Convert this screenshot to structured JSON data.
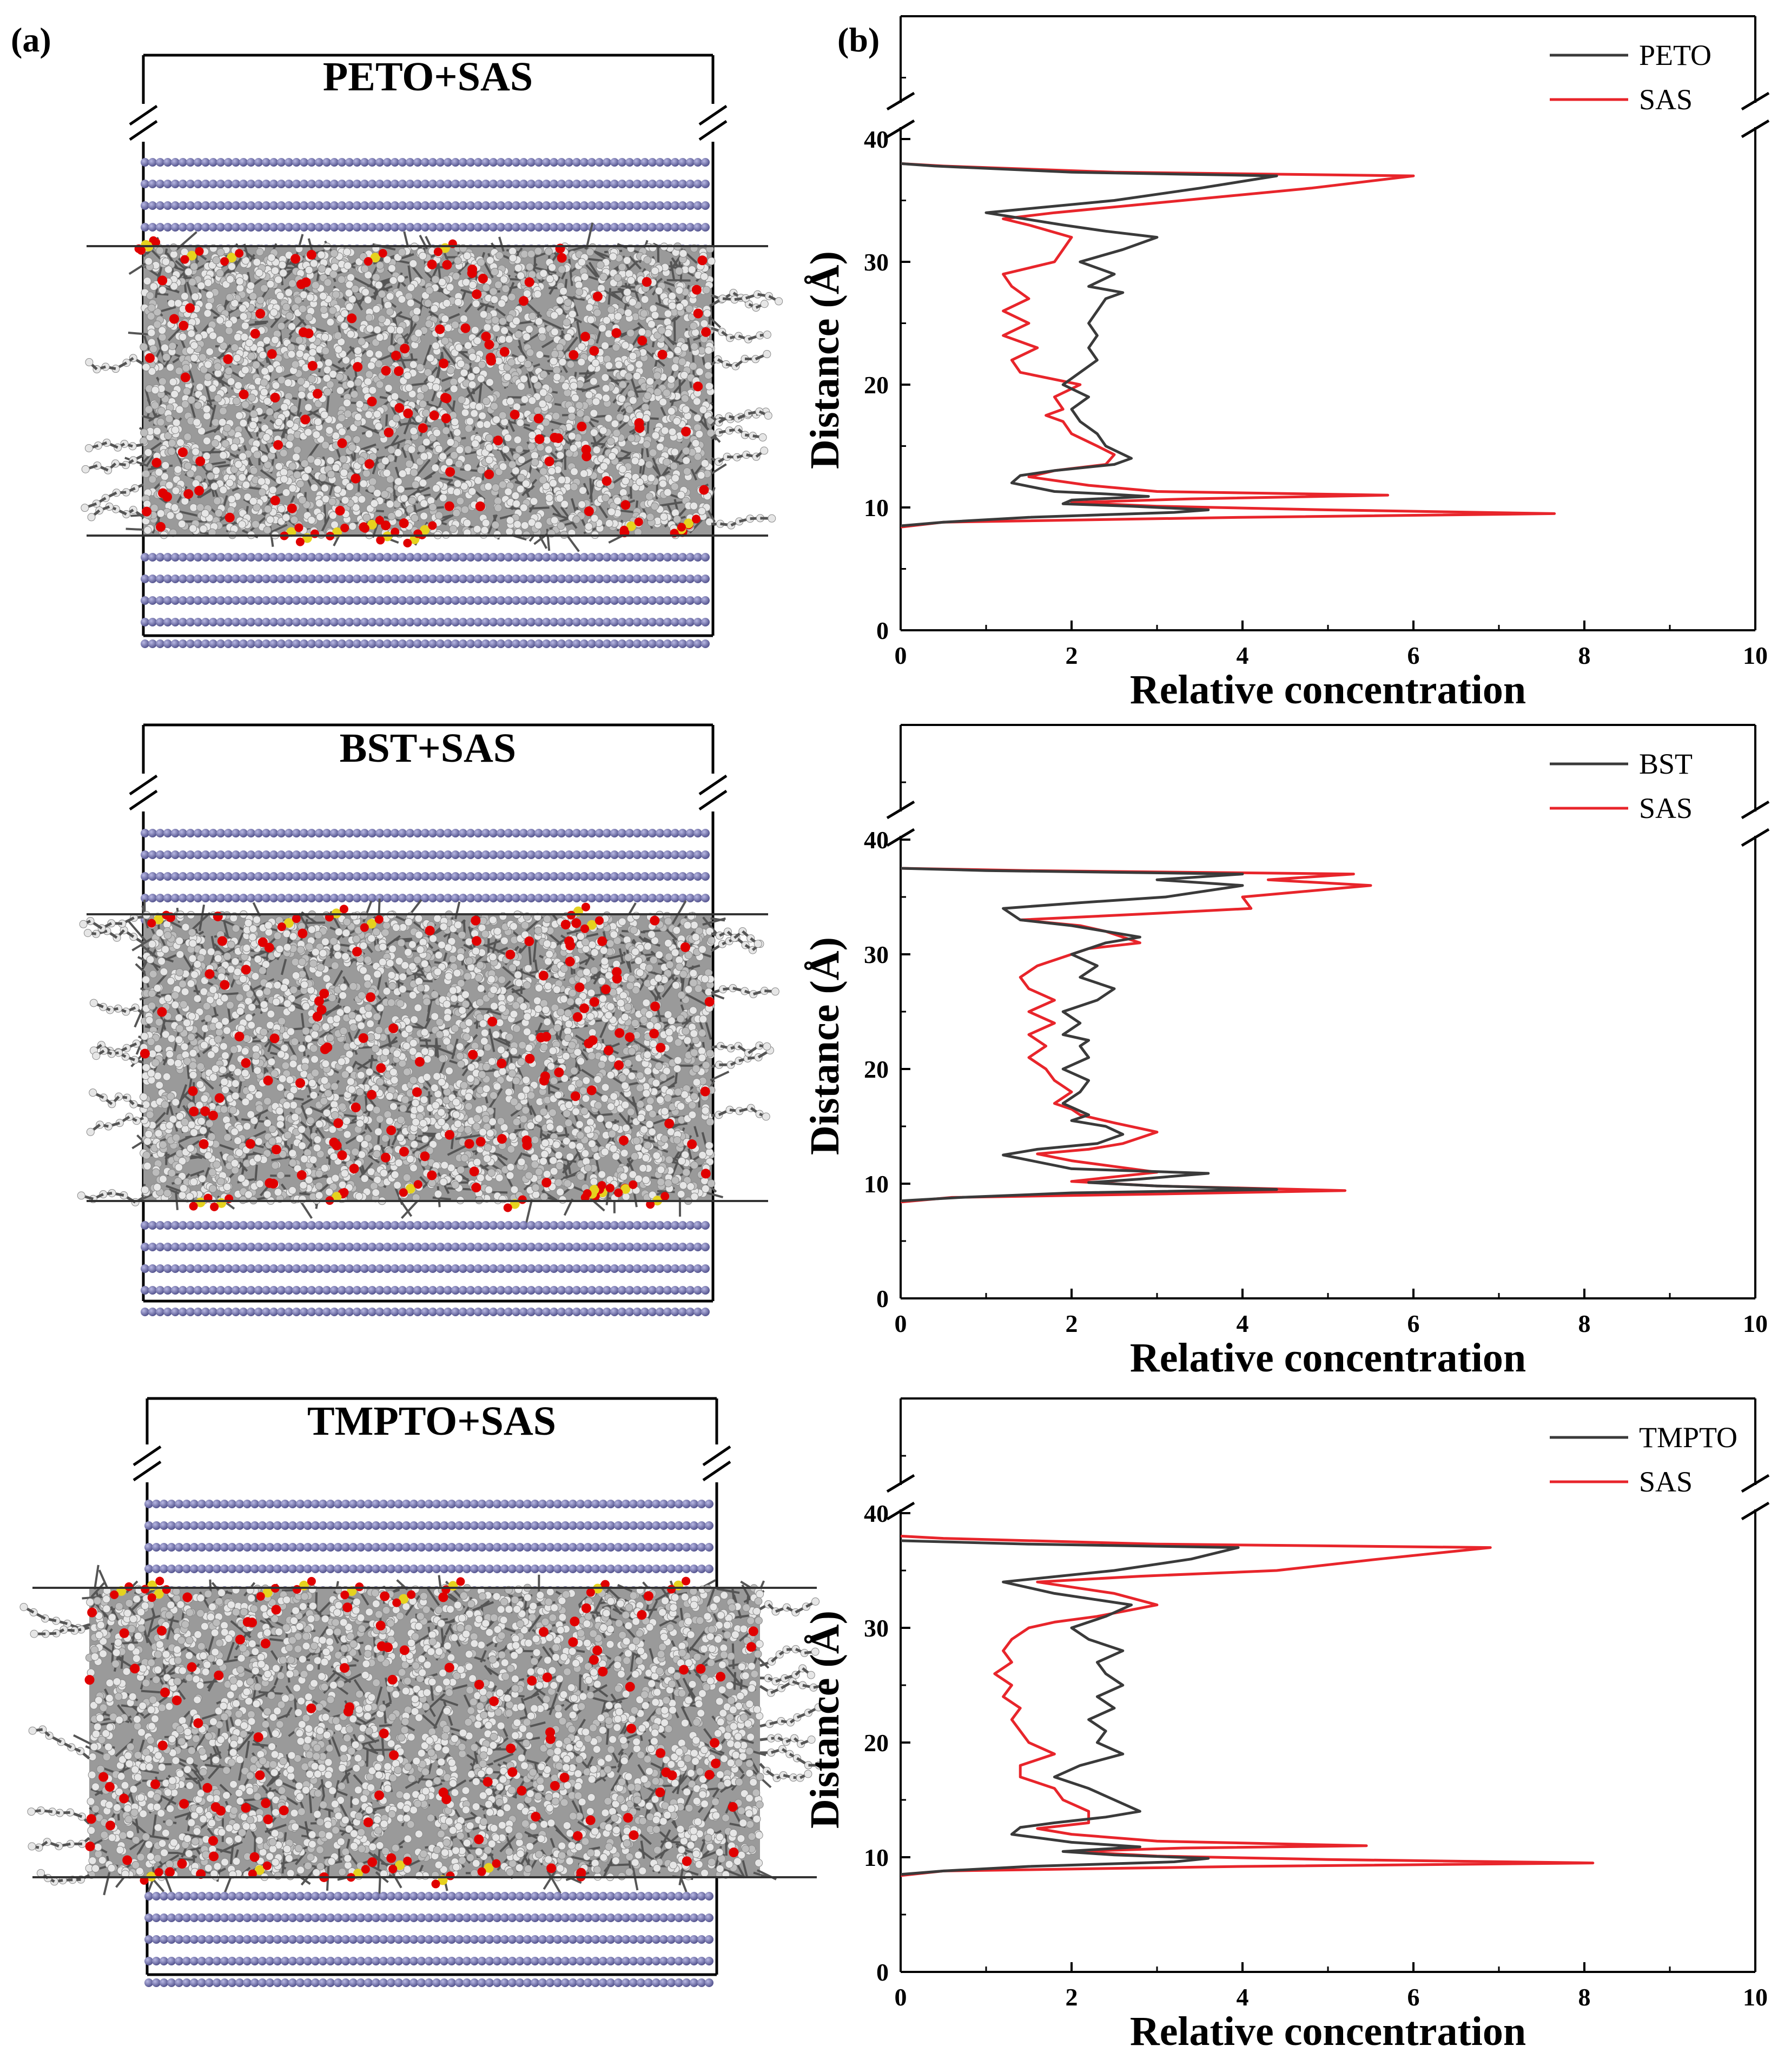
{
  "panel_labels": {
    "a": "(a)",
    "b": "(b)"
  },
  "colors": {
    "base_oil": "#3a3a3a",
    "sas": "#e8252b",
    "iron_atom": "#6f6fa6",
    "frame": "#000000",
    "molecule_gray": "#8c8c8c",
    "molecule_white": "#e6e6e6",
    "oxygen": "#e00000",
    "sulfur": "#e6d21e"
  },
  "snapshots": [
    {
      "title": "PETO+SAS"
    },
    {
      "title": "BST+SAS"
    },
    {
      "title": "TMPTO+SAS"
    }
  ],
  "chart_data": [
    {
      "type": "line",
      "xlabel": "Relative concentration",
      "ylabel": "Distance (Å)",
      "xlim": [
        0,
        10
      ],
      "ylim": [
        0,
        50
      ],
      "xticks": [
        0,
        2,
        4,
        6,
        8,
        10
      ],
      "yticks": [
        0,
        10,
        20,
        30,
        40
      ],
      "legend_position": "top-right",
      "axis_break": "top of y-axis",
      "series": [
        {
          "name": "PETO",
          "points": [
            [
              0,
              8.5
            ],
            [
              0.5,
              8.8
            ],
            [
              1.5,
              9.2
            ],
            [
              3.2,
              9.6
            ],
            [
              3.6,
              9.8
            ],
            [
              2.7,
              10.1
            ],
            [
              1.9,
              10.3
            ],
            [
              2.0,
              10.6
            ],
            [
              2.9,
              10.9
            ],
            [
              2.4,
              11.1
            ],
            [
              1.8,
              11.3
            ],
            [
              1.3,
              12.0
            ],
            [
              1.4,
              12.6
            ],
            [
              1.8,
              13.0
            ],
            [
              2.5,
              13.5
            ],
            [
              2.7,
              14.0
            ],
            [
              2.4,
              15.0
            ],
            [
              2.3,
              16.0
            ],
            [
              2.1,
              17.0
            ],
            [
              2.0,
              18.0
            ],
            [
              2.2,
              19.0
            ],
            [
              1.9,
              20.0
            ],
            [
              2.1,
              21.0
            ],
            [
              2.3,
              22.0
            ],
            [
              2.2,
              23.0
            ],
            [
              2.3,
              24.0
            ],
            [
              2.2,
              25.0
            ],
            [
              2.3,
              26.0
            ],
            [
              2.4,
              27.0
            ],
            [
              2.6,
              27.5
            ],
            [
              2.2,
              28.0
            ],
            [
              2.5,
              29.0
            ],
            [
              2.1,
              30.0
            ],
            [
              2.6,
              31.0
            ],
            [
              3.0,
              32.0
            ],
            [
              2.4,
              32.5
            ],
            [
              1.9,
              33.0
            ],
            [
              1.0,
              34.0
            ],
            [
              2.5,
              35.0
            ],
            [
              3.5,
              36.0
            ],
            [
              4.4,
              37.0
            ],
            [
              2.0,
              37.3
            ],
            [
              0.4,
              37.8
            ],
            [
              0,
              38.0
            ]
          ]
        },
        {
          "name": "SAS",
          "points": [
            [
              0,
              8.4
            ],
            [
              0.5,
              8.8
            ],
            [
              4.0,
              9.2
            ],
            [
              7.65,
              9.5
            ],
            [
              5.0,
              9.8
            ],
            [
              3.0,
              10.1
            ],
            [
              2.0,
              10.4
            ],
            [
              3.4,
              10.7
            ],
            [
              5.7,
              11.0
            ],
            [
              3.0,
              11.3
            ],
            [
              2.2,
              11.8
            ],
            [
              1.5,
              12.5
            ],
            [
              1.8,
              13.0
            ],
            [
              2.4,
              13.5
            ],
            [
              2.5,
              14.3
            ],
            [
              2.3,
              15.0
            ],
            [
              2.0,
              16.0
            ],
            [
              1.9,
              17.0
            ],
            [
              1.7,
              17.5
            ],
            [
              1.9,
              18.0
            ],
            [
              1.8,
              19.0
            ],
            [
              2.1,
              20.0
            ],
            [
              1.4,
              21.0
            ],
            [
              1.3,
              22.0
            ],
            [
              1.6,
              23.0
            ],
            [
              1.2,
              24.0
            ],
            [
              1.5,
              25.0
            ],
            [
              1.2,
              26.0
            ],
            [
              1.5,
              27.0
            ],
            [
              1.3,
              28.0
            ],
            [
              1.2,
              29.0
            ],
            [
              1.8,
              30.0
            ],
            [
              1.9,
              31.0
            ],
            [
              2.0,
              32.0
            ],
            [
              1.5,
              33.0
            ],
            [
              1.2,
              33.5
            ],
            [
              1.8,
              34.0
            ],
            [
              3.3,
              35.0
            ],
            [
              4.8,
              36.0
            ],
            [
              6.0,
              37.0
            ],
            [
              2.5,
              37.3
            ],
            [
              0.5,
              37.8
            ],
            [
              0,
              38.0
            ]
          ]
        }
      ]
    },
    {
      "type": "line",
      "xlabel": "Relative concentration",
      "ylabel": "Distance (Å)",
      "xlim": [
        0,
        10
      ],
      "ylim": [
        0,
        50
      ],
      "xticks": [
        0,
        2,
        4,
        6,
        8,
        10
      ],
      "yticks": [
        0,
        10,
        20,
        30,
        40
      ],
      "legend_position": "top-right",
      "axis_break": "top of y-axis",
      "series": [
        {
          "name": "BST",
          "points": [
            [
              0,
              8.5
            ],
            [
              0.7,
              8.8
            ],
            [
              2.0,
              9.2
            ],
            [
              4.4,
              9.5
            ],
            [
              3.0,
              9.8
            ],
            [
              2.2,
              10.1
            ],
            [
              2.8,
              10.4
            ],
            [
              3.6,
              10.9
            ],
            [
              2.0,
              11.3
            ],
            [
              1.2,
              12.5
            ],
            [
              1.6,
              13.0
            ],
            [
              2.3,
              13.5
            ],
            [
              2.6,
              14.3
            ],
            [
              2.4,
              15.0
            ],
            [
              2.0,
              15.5
            ],
            [
              2.2,
              16.0
            ],
            [
              1.9,
              17.0
            ],
            [
              2.1,
              18.0
            ],
            [
              2.2,
              19.0
            ],
            [
              1.9,
              20.0
            ],
            [
              2.2,
              21.0
            ],
            [
              2.1,
              22.0
            ],
            [
              2.2,
              22.5
            ],
            [
              1.9,
              23.0
            ],
            [
              2.1,
              24.0
            ],
            [
              1.9,
              25.0
            ],
            [
              2.3,
              26.0
            ],
            [
              2.5,
              27.0
            ],
            [
              2.1,
              28.0
            ],
            [
              2.3,
              29.0
            ],
            [
              2.0,
              30.0
            ],
            [
              2.4,
              31.0
            ],
            [
              2.8,
              31.5
            ],
            [
              2.0,
              32.5
            ],
            [
              1.4,
              33.0
            ],
            [
              1.2,
              34.0
            ],
            [
              2.1,
              34.5
            ],
            [
              3.1,
              35.0
            ],
            [
              4.0,
              36.0
            ],
            [
              3.0,
              36.5
            ],
            [
              4.0,
              37.0
            ],
            [
              1.0,
              37.3
            ],
            [
              0,
              37.5
            ]
          ]
        },
        {
          "name": "SAS",
          "points": [
            [
              0,
              8.4
            ],
            [
              0.6,
              8.8
            ],
            [
              3.0,
              9.1
            ],
            [
              5.2,
              9.4
            ],
            [
              3.0,
              9.8
            ],
            [
              2.0,
              10.2
            ],
            [
              2.5,
              10.6
            ],
            [
              3.0,
              11.0
            ],
            [
              2.5,
              11.5
            ],
            [
              2.0,
              12.0
            ],
            [
              1.6,
              12.6
            ],
            [
              2.2,
              13.0
            ],
            [
              2.6,
              13.5
            ],
            [
              3.0,
              14.5
            ],
            [
              2.5,
              15.3
            ],
            [
              2.1,
              16.0
            ],
            [
              2.0,
              16.5
            ],
            [
              1.8,
              17.0
            ],
            [
              2.0,
              18.0
            ],
            [
              1.8,
              19.0
            ],
            [
              1.7,
              20.0
            ],
            [
              1.5,
              21.0
            ],
            [
              1.7,
              22.0
            ],
            [
              1.5,
              23.0
            ],
            [
              1.8,
              24.0
            ],
            [
              1.5,
              25.0
            ],
            [
              1.8,
              26.0
            ],
            [
              1.5,
              27.0
            ],
            [
              1.4,
              28.0
            ],
            [
              1.6,
              29.0
            ],
            [
              1.8,
              29.5
            ],
            [
              2.0,
              30.0
            ],
            [
              2.2,
              30.5
            ],
            [
              2.8,
              31.0
            ],
            [
              2.4,
              32.0
            ],
            [
              2.1,
              32.5
            ],
            [
              1.4,
              33.0
            ],
            [
              2.8,
              33.5
            ],
            [
              4.1,
              34.0
            ],
            [
              4.0,
              35.0
            ],
            [
              5.5,
              36.0
            ],
            [
              4.3,
              36.5
            ],
            [
              5.3,
              37.0
            ],
            [
              1.5,
              37.3
            ],
            [
              0,
              37.5
            ]
          ]
        }
      ]
    },
    {
      "type": "line",
      "xlabel": "Relative concentration",
      "ylabel": "Distance (Å)",
      "xlim": [
        0,
        10
      ],
      "ylim": [
        0,
        50
      ],
      "xticks": [
        0,
        2,
        4,
        6,
        8,
        10
      ],
      "yticks": [
        0,
        10,
        20,
        30,
        40
      ],
      "legend_position": "top-right",
      "axis_break": "top of y-axis",
      "series": [
        {
          "name": "TMPTO",
          "points": [
            [
              0,
              8.5
            ],
            [
              0.5,
              8.8
            ],
            [
              1.5,
              9.2
            ],
            [
              3.2,
              9.6
            ],
            [
              3.6,
              9.9
            ],
            [
              2.5,
              10.2
            ],
            [
              1.9,
              10.5
            ],
            [
              2.8,
              10.9
            ],
            [
              2.0,
              11.3
            ],
            [
              1.3,
              12.0
            ],
            [
              1.4,
              12.6
            ],
            [
              1.8,
              13.0
            ],
            [
              2.4,
              13.5
            ],
            [
              2.8,
              14.0
            ],
            [
              2.5,
              15.0
            ],
            [
              2.2,
              16.0
            ],
            [
              1.8,
              17.0
            ],
            [
              2.1,
              18.0
            ],
            [
              2.6,
              19.0
            ],
            [
              2.3,
              20.0
            ],
            [
              2.4,
              21.0
            ],
            [
              2.2,
              22.0
            ],
            [
              2.5,
              23.0
            ],
            [
              2.3,
              24.0
            ],
            [
              2.6,
              25.0
            ],
            [
              2.4,
              26.0
            ],
            [
              2.3,
              27.0
            ],
            [
              2.6,
              28.0
            ],
            [
              2.2,
              29.0
            ],
            [
              2.0,
              30.0
            ],
            [
              2.4,
              31.0
            ],
            [
              2.7,
              32.0
            ],
            [
              1.8,
              33.0
            ],
            [
              1.2,
              34.0
            ],
            [
              2.5,
              35.0
            ],
            [
              3.4,
              36.0
            ],
            [
              3.95,
              37.0
            ],
            [
              1.5,
              37.3
            ],
            [
              0,
              37.6
            ]
          ]
        },
        {
          "name": "SAS",
          "points": [
            [
              0,
              8.4
            ],
            [
              0.5,
              8.8
            ],
            [
              4.0,
              9.2
            ],
            [
              8.1,
              9.5
            ],
            [
              5.0,
              9.8
            ],
            [
              3.0,
              10.1
            ],
            [
              2.0,
              10.5
            ],
            [
              3.3,
              10.8
            ],
            [
              5.45,
              11.0
            ],
            [
              3.0,
              11.4
            ],
            [
              2.0,
              12.0
            ],
            [
              1.6,
              12.5
            ],
            [
              2.2,
              13.0
            ],
            [
              2.2,
              14.0
            ],
            [
              1.9,
              15.0
            ],
            [
              1.8,
              16.0
            ],
            [
              1.4,
              17.0
            ],
            [
              1.4,
              18.0
            ],
            [
              1.8,
              19.0
            ],
            [
              1.5,
              20.0
            ],
            [
              1.4,
              21.0
            ],
            [
              1.3,
              22.0
            ],
            [
              1.4,
              23.0
            ],
            [
              1.2,
              24.0
            ],
            [
              1.3,
              25.0
            ],
            [
              1.1,
              26.0
            ],
            [
              1.3,
              27.0
            ],
            [
              1.2,
              28.0
            ],
            [
              1.3,
              29.0
            ],
            [
              1.5,
              30.0
            ],
            [
              1.8,
              30.5
            ],
            [
              2.3,
              31.0
            ],
            [
              3.0,
              32.0
            ],
            [
              2.5,
              33.0
            ],
            [
              1.6,
              34.0
            ],
            [
              2.8,
              34.5
            ],
            [
              4.4,
              35.0
            ],
            [
              5.6,
              36.0
            ],
            [
              6.9,
              37.0
            ],
            [
              3.0,
              37.3
            ],
            [
              0.5,
              37.8
            ],
            [
              0,
              38.0
            ]
          ]
        }
      ]
    }
  ]
}
